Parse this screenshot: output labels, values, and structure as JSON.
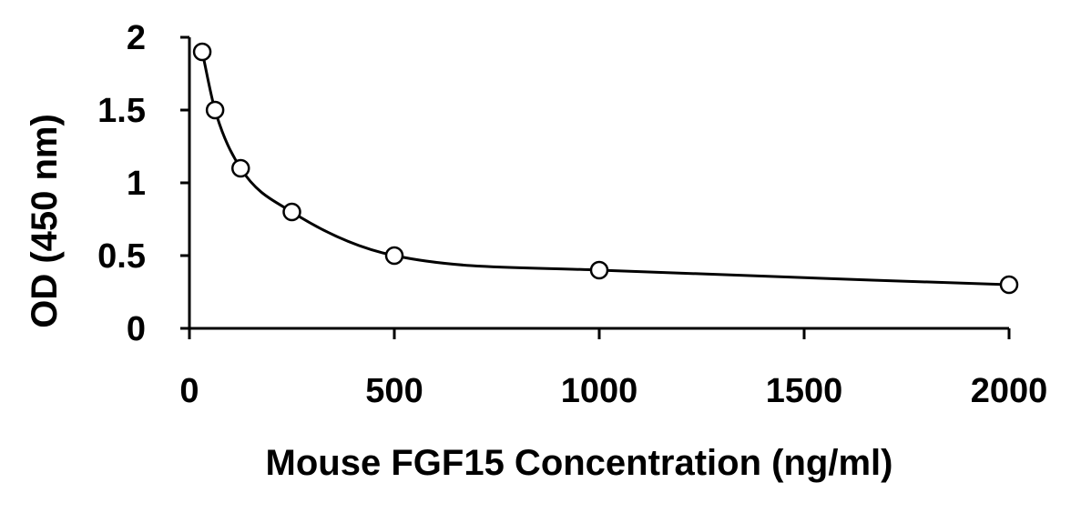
{
  "chart_data": {
    "type": "scatter",
    "title": "",
    "xlabel": "Mouse FGF15  Concentration (ng/ml)",
    "ylabel": "OD (450 nm)",
    "xlim": [
      0,
      2000
    ],
    "ylim": [
      0,
      2
    ],
    "x_ticks": [
      0,
      500,
      1000,
      1500,
      2000
    ],
    "y_ticks": [
      0,
      0.5,
      1,
      1.5,
      2
    ],
    "x_tick_labels": [
      "0",
      "500",
      "1000",
      "1500",
      "2000"
    ],
    "y_tick_labels": [
      "0",
      "0.5",
      "1",
      "1.5",
      "2"
    ],
    "grid": false,
    "legend": "none",
    "series": [
      {
        "x": [
          31.25,
          62.5,
          125,
          250,
          500,
          1000,
          2000
        ],
        "y": [
          1.9,
          1.5,
          1.1,
          0.8,
          0.5,
          0.4,
          0.3
        ],
        "marker": "open-circle",
        "line": "smooth",
        "color": "#000000"
      }
    ]
  }
}
